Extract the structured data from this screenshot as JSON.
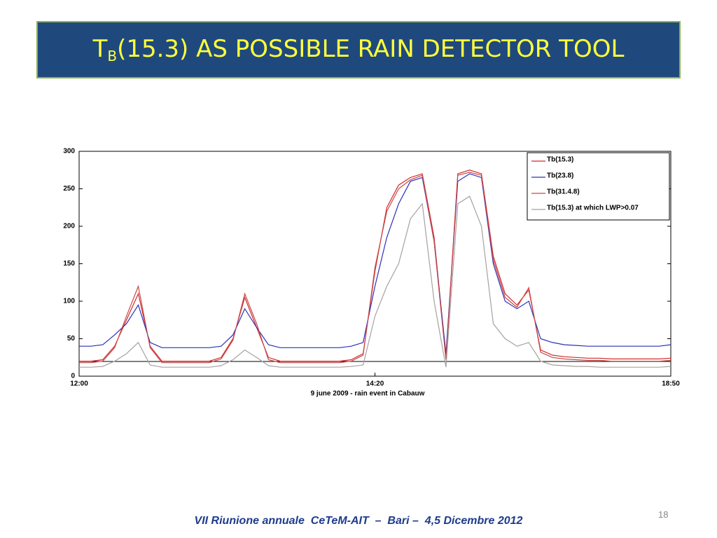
{
  "slide": {
    "title": {
      "main": "T",
      "sub": "B",
      "rest": "(15.3) AS POSSIBLE RAIN DETECTOR TOOL"
    },
    "footer": "VII Riunione annuale  CeTeM-AIT  –  Bari –  4,5 Dicembre 2012",
    "page_number": "18"
  },
  "chart_data": {
    "type": "line",
    "x_label": "9 june 2009 - rain event in Cabauw",
    "categories": [
      "12:00",
      null,
      null,
      null,
      null,
      null,
      null,
      null,
      null,
      null,
      null,
      null,
      null,
      null,
      null,
      null,
      null,
      null,
      null,
      null,
      null,
      null,
      null,
      null,
      null,
      "14:20",
      null,
      null,
      null,
      null,
      null,
      null,
      null,
      null,
      null,
      null,
      null,
      null,
      null,
      null,
      null,
      null,
      null,
      null,
      null,
      null,
      null,
      null,
      null,
      null,
      "18:50"
    ],
    "ylim": [
      0,
      300
    ],
    "yticks": [
      0,
      50,
      100,
      150,
      200,
      250,
      300
    ],
    "legend": "upper right",
    "series": [
      {
        "name": "Tb(15.3)",
        "color": "#d42a2a",
        "values": [
          20,
          20,
          22,
          40,
          75,
          110,
          40,
          20,
          20,
          20,
          20,
          20,
          25,
          50,
          105,
          65,
          25,
          20,
          20,
          20,
          20,
          20,
          20,
          22,
          30,
          140,
          225,
          255,
          265,
          270,
          185,
          25,
          270,
          275,
          270,
          160,
          110,
          95,
          115,
          35,
          28,
          26,
          25,
          24,
          24,
          23,
          23,
          23,
          23,
          23,
          24
        ]
      },
      {
        "name": "Tb(23.8)",
        "color": "#2a32b8",
        "values": [
          40,
          40,
          42,
          55,
          70,
          95,
          45,
          38,
          38,
          38,
          38,
          38,
          40,
          55,
          90,
          65,
          42,
          38,
          38,
          38,
          38,
          38,
          38,
          40,
          45,
          120,
          185,
          230,
          260,
          265,
          180,
          30,
          260,
          270,
          265,
          150,
          100,
          90,
          100,
          50,
          45,
          42,
          41,
          40,
          40,
          40,
          40,
          40,
          40,
          40,
          42
        ]
      },
      {
        "name": "Tb(31.4.8)",
        "color": "#c84848",
        "values": [
          18,
          18,
          20,
          38,
          80,
          120,
          38,
          18,
          18,
          18,
          18,
          18,
          23,
          48,
          110,
          70,
          22,
          18,
          18,
          18,
          18,
          18,
          18,
          20,
          28,
          145,
          220,
          250,
          262,
          268,
          180,
          22,
          268,
          272,
          268,
          155,
          105,
          92,
          118,
          32,
          25,
          23,
          22,
          21,
          21,
          20,
          20,
          20,
          20,
          20,
          21
        ]
      },
      {
        "name": "Tb(15.3) at which LWP>0.07",
        "color": "#a8a0a0",
        "values": [
          12,
          12,
          13,
          20,
          30,
          45,
          15,
          12,
          12,
          12,
          12,
          12,
          14,
          22,
          35,
          25,
          14,
          12,
          12,
          12,
          12,
          12,
          12,
          13,
          15,
          80,
          120,
          150,
          210,
          230,
          100,
          12,
          230,
          240,
          200,
          70,
          50,
          40,
          45,
          20,
          15,
          14,
          13,
          13,
          12,
          12,
          12,
          12,
          12,
          12,
          13
        ]
      }
    ]
  }
}
